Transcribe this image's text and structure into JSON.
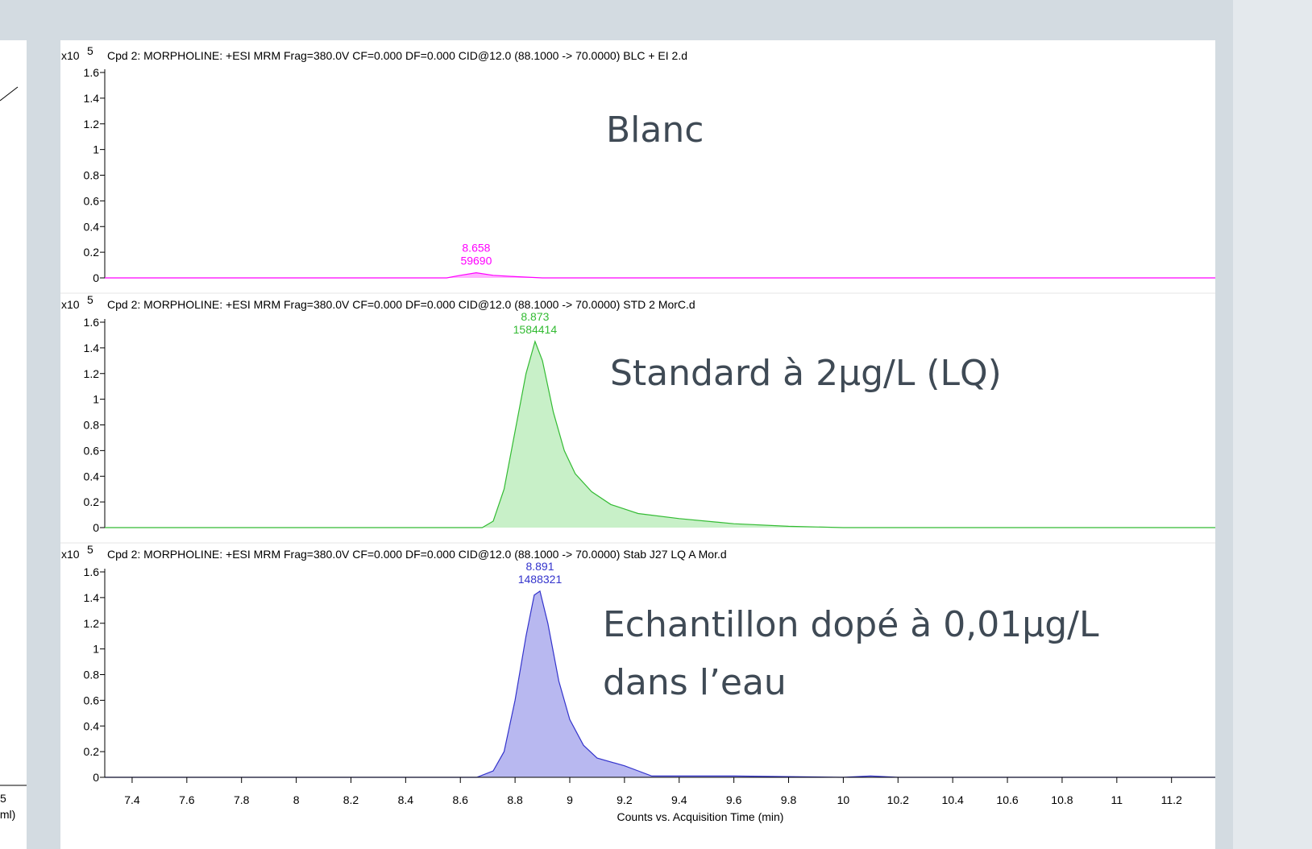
{
  "left_panel": {
    "texts": [
      "5",
      "/ml)"
    ]
  },
  "chart_data": [
    {
      "type": "line",
      "title": "Cpd 2: MORPHOLINE: +ESI MRM Frag=380.0V CF=0.000 DF=0.000 CID@12.0 (88.1000 -> 70.0000) BLC +  EI 2.d",
      "scale_prefix": "x10",
      "scale_exponent": "5",
      "annotation": [
        "Blanc"
      ],
      "xlim": [
        7.3,
        11.36
      ],
      "ylim": [
        0,
        1.6
      ],
      "yticks": [
        0,
        0.2,
        0.4,
        0.6,
        0.8,
        1,
        1.2,
        1.4,
        1.6
      ],
      "x": [
        7.3,
        8.55,
        8.6,
        8.658,
        8.72,
        8.8,
        8.9,
        11.36
      ],
      "values": [
        0,
        0,
        0.02,
        0.04,
        0.02,
        0.01,
        0,
        0
      ],
      "color": "#ff00ff",
      "fill": "#ffb3ff",
      "peak": {
        "x": 8.658,
        "area": 59690
      }
    },
    {
      "type": "line",
      "title": "Cpd 2: MORPHOLINE: +ESI MRM Frag=380.0V CF=0.000 DF=0.000 CID@12.0 (88.1000 -> 70.0000) STD 2 MorC.d",
      "scale_prefix": "x10",
      "scale_exponent": "5",
      "annotation": [
        "Standard à 2µg/L (LQ)"
      ],
      "xlim": [
        7.3,
        11.36
      ],
      "ylim": [
        0,
        1.6
      ],
      "yticks": [
        0,
        0.2,
        0.4,
        0.6,
        0.8,
        1,
        1.2,
        1.4,
        1.6
      ],
      "x": [
        7.3,
        8.68,
        8.72,
        8.76,
        8.8,
        8.84,
        8.873,
        8.9,
        8.94,
        8.98,
        9.02,
        9.08,
        9.15,
        9.25,
        9.4,
        9.6,
        9.8,
        10,
        11.36
      ],
      "values": [
        0,
        0,
        0.05,
        0.3,
        0.75,
        1.2,
        1.45,
        1.3,
        0.9,
        0.6,
        0.42,
        0.28,
        0.18,
        0.11,
        0.07,
        0.03,
        0.01,
        0,
        0
      ],
      "color": "#33bb33",
      "fill": "#c8f0c8",
      "peak": {
        "x": 8.873,
        "area": 1584414
      }
    },
    {
      "type": "line",
      "title": "Cpd 2: MORPHOLINE: +ESI MRM Frag=380.0V CF=0.000 DF=0.000 CID@12.0 (88.1000 -> 70.0000) Stab J27 LQ A Mor.d",
      "scale_prefix": "x10",
      "scale_exponent": "5",
      "annotation": [
        "Echantillon dopé à 0,01µg/L",
        "dans l’eau"
      ],
      "xlim": [
        7.3,
        11.36
      ],
      "ylim": [
        0,
        1.6
      ],
      "yticks": [
        0,
        0.2,
        0.4,
        0.6,
        0.8,
        1,
        1.2,
        1.4,
        1.6
      ],
      "xticks": [
        7.4,
        7.6,
        7.8,
        8,
        8.2,
        8.4,
        8.6,
        8.8,
        9,
        9.2,
        9.4,
        9.6,
        9.8,
        10,
        10.2,
        10.4,
        10.6,
        10.8,
        11,
        11.2
      ],
      "xlabel": "Counts vs. Acquisition Time (min)",
      "x": [
        7.3,
        8.66,
        8.72,
        8.76,
        8.8,
        8.84,
        8.87,
        8.891,
        8.92,
        8.96,
        9,
        9.05,
        9.1,
        9.2,
        9.25,
        9.3,
        9.6,
        10,
        10.1,
        10.2,
        11.36
      ],
      "values": [
        0,
        0,
        0.05,
        0.2,
        0.6,
        1.1,
        1.42,
        1.45,
        1.2,
        0.75,
        0.45,
        0.25,
        0.15,
        0.09,
        0.05,
        0.01,
        0.01,
        0,
        0.01,
        0,
        0
      ],
      "color": "#3333cc",
      "fill": "#b8b8f0",
      "peak": {
        "x": 8.891,
        "area": 1488321
      }
    }
  ]
}
